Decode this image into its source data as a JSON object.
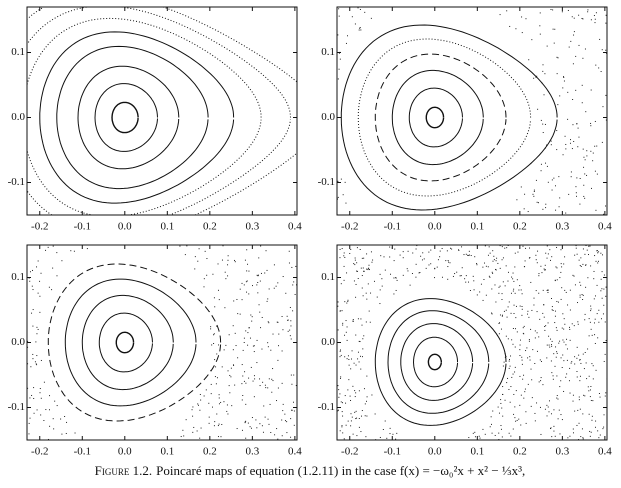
{
  "chart_data": [
    {
      "type": "scatter",
      "xlim": [
        -0.23,
        0.405
      ],
      "ylim": [
        -0.15,
        0.17
      ],
      "xticks": [
        -0.2,
        -0.1,
        {
          "value": 0,
          "label": "0.0"
        },
        0.1,
        0.2,
        0.3,
        0.4
      ],
      "yticks": [
        -0.1,
        {
          "value": 0,
          "label": "0.0"
        },
        0.1
      ]
    },
    {
      "type": "scatter",
      "xlim": [
        -0.23,
        0.405
      ],
      "ylim": [
        -0.15,
        0.17
      ],
      "xticks": [
        -0.2,
        -0.1,
        {
          "value": 0,
          "label": "0.0"
        },
        0.1,
        0.2,
        0.3,
        0.4
      ],
      "yticks": [
        -0.1,
        {
          "value": 0,
          "label": "0.0"
        },
        0.1
      ]
    },
    {
      "type": "scatter",
      "xlim": [
        -0.23,
        0.405
      ],
      "ylim": [
        -0.15,
        0.15
      ],
      "xticks": [
        -0.2,
        -0.1,
        {
          "value": 0,
          "label": "0.0"
        },
        0.1,
        0.2,
        0.3,
        0.4
      ],
      "yticks": [
        -0.1,
        {
          "value": 0,
          "label": "0.0"
        },
        0.1
      ]
    },
    {
      "type": "scatter",
      "xlim": [
        -0.23,
        0.405
      ],
      "ylim": [
        -0.15,
        0.15
      ],
      "xticks": [
        -0.2,
        -0.1,
        {
          "value": 0,
          "label": "0.0"
        },
        0.1,
        0.2,
        0.3,
        0.4
      ],
      "yticks": [
        -0.1,
        {
          "value": 0,
          "label": "0.0"
        },
        0.1
      ]
    }
  ],
  "caption": {
    "label": "Figure 1.2.",
    "text": "Poincaré maps of equation (1.2.11) in the case f(x) = −ω₀²x + x² − ⅓x³,"
  }
}
